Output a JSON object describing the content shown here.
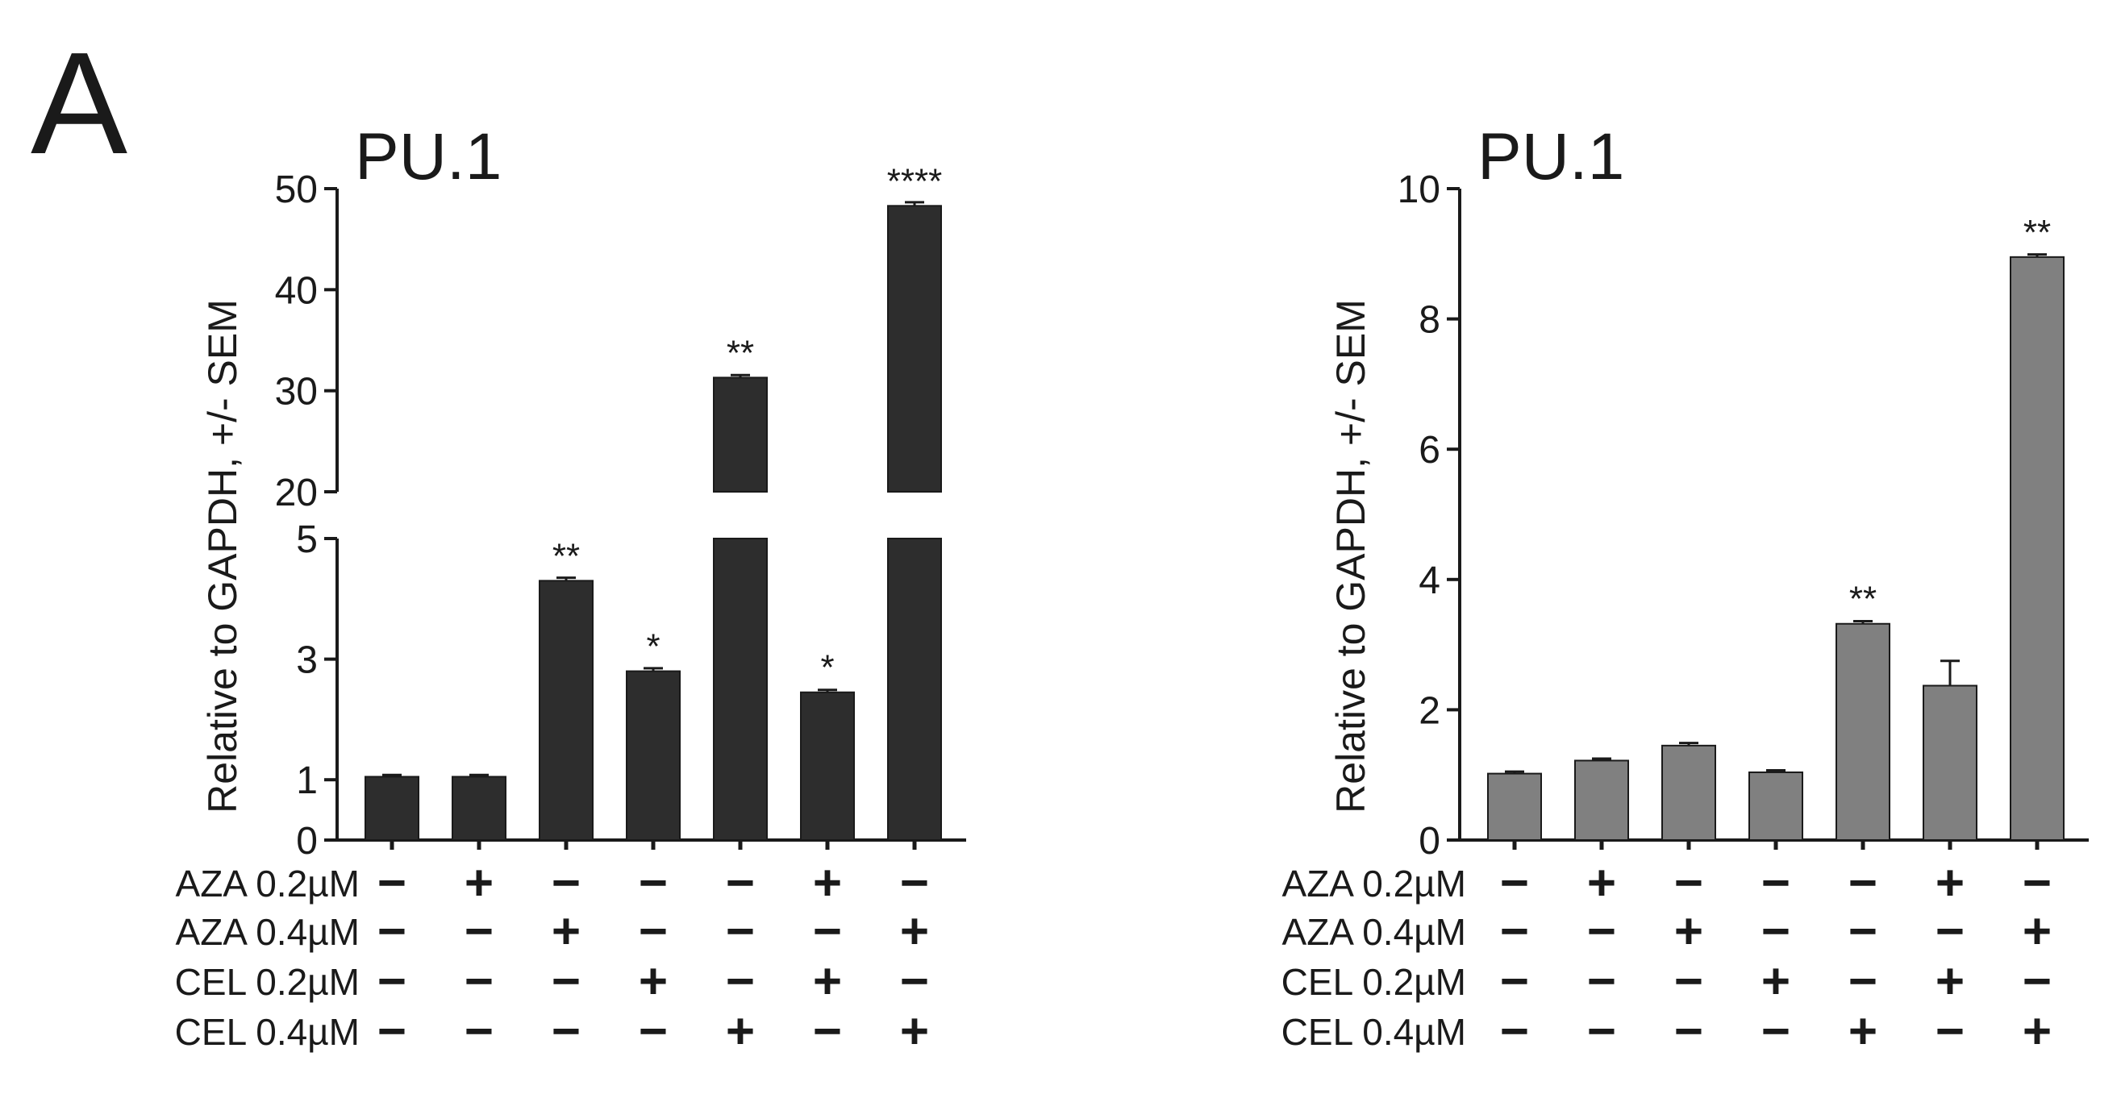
{
  "panel_label": "A",
  "treatment_rows": [
    {
      "label": "AZA 0.2µM",
      "signs": [
        "−",
        "+",
        "−",
        "−",
        "−",
        "+",
        "−"
      ]
    },
    {
      "label": "AZA 0.4µM",
      "signs": [
        "−",
        "−",
        "+",
        "−",
        "−",
        "−",
        "+"
      ]
    },
    {
      "label": "CEL 0.2µM",
      "signs": [
        "−",
        "−",
        "−",
        "+",
        "−",
        "+",
        "−"
      ]
    },
    {
      "label": "CEL 0.4µM",
      "signs": [
        "−",
        "−",
        "−",
        "−",
        "+",
        "−",
        "+"
      ]
    }
  ],
  "chart_data": [
    {
      "type": "bar",
      "title": "PU.1",
      "ylabel": "Relative to GAPDH, +/- SEM",
      "xlabel": "",
      "axis_break": {
        "lower_range": [
          0,
          5
        ],
        "upper_range": [
          20,
          50
        ]
      },
      "yticks_lower": [
        "0",
        "1",
        "3",
        "5"
      ],
      "yticks_upper": [
        "20",
        "30",
        "40",
        "50"
      ],
      "bar_color": "#2d2d2d",
      "values": [
        1.05,
        1.05,
        4.3,
        2.8,
        31.3,
        2.45,
        48.3
      ],
      "errors": [
        0.03,
        0.03,
        0.05,
        0.05,
        0.25,
        0.04,
        0.35
      ],
      "annotations": [
        "",
        "",
        "**",
        "*",
        "**",
        "*",
        "****"
      ]
    },
    {
      "type": "bar",
      "title": "PU.1",
      "ylabel": "Relative to GAPDH, +/- SEM",
      "xlabel": "",
      "ylim": [
        0,
        10
      ],
      "yticks": [
        "0",
        "2",
        "4",
        "6",
        "8",
        "10"
      ],
      "bar_color": "#808080",
      "values": [
        1.02,
        1.22,
        1.45,
        1.04,
        3.32,
        2.37,
        8.95
      ],
      "errors": [
        0.03,
        0.03,
        0.04,
        0.03,
        0.04,
        0.38,
        0.04
      ],
      "annotations": [
        "",
        "",
        "",
        "",
        "**",
        "",
        "**"
      ]
    }
  ]
}
